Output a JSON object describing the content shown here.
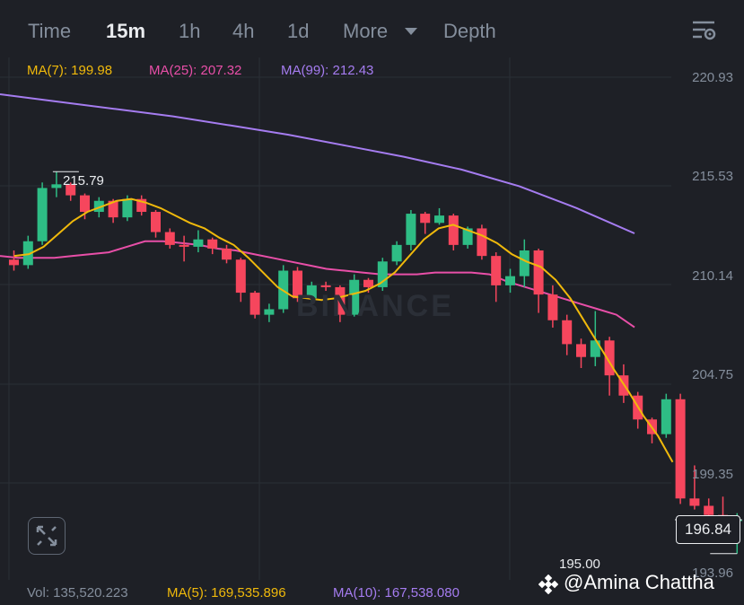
{
  "tabs": [
    "Time",
    "15m",
    "1h",
    "4h",
    "1d",
    "More",
    "Depth"
  ],
  "active_tab": "15m",
  "ma_legend": [
    {
      "label": "MA(7): 199.98",
      "color": "#f0b90b"
    },
    {
      "label": "MA(25): 207.32",
      "color": "#e84fa8"
    },
    {
      "label": "MA(99): 212.43",
      "color": "#a57cf0"
    }
  ],
  "y_ticks": [
    "220.93",
    "215.53",
    "210.14",
    "204.75",
    "199.35",
    "193.96"
  ],
  "high_label": "215.79",
  "low_label": "195.00",
  "current_price": "196.84",
  "watermark_text": "BINANCE",
  "credit": "@Amina Chattha",
  "volume_legend": [
    {
      "label": "Vol: 135,520.223",
      "color": "#848e9c"
    },
    {
      "label": "MA(5): 169,535.896",
      "color": "#f0b90b"
    },
    {
      "label": "MA(10): 167,538.080",
      "color": "#a57cf0"
    }
  ],
  "colors": {
    "up": "#2ebd85",
    "down": "#f6465d",
    "grid": "#2b2f36",
    "bg": "#1e2026"
  },
  "chart_data": {
    "type": "candlestick",
    "y_range": [
      193.96,
      220.93
    ],
    "candles": [
      [
        211.0,
        211.5,
        210.4,
        210.7
      ],
      [
        210.7,
        212.3,
        210.5,
        212.0
      ],
      [
        212.0,
        215.2,
        211.8,
        214.9
      ],
      [
        214.9,
        215.79,
        214.4,
        215.1
      ],
      [
        215.1,
        215.2,
        214.2,
        214.5
      ],
      [
        214.5,
        214.6,
        213.2,
        213.6
      ],
      [
        213.6,
        214.4,
        213.3,
        214.2
      ],
      [
        214.2,
        214.3,
        213.0,
        213.3
      ],
      [
        213.3,
        214.5,
        213.1,
        214.3
      ],
      [
        214.3,
        214.5,
        213.4,
        213.6
      ],
      [
        213.6,
        213.7,
        212.2,
        212.5
      ],
      [
        212.5,
        212.7,
        211.6,
        211.8
      ],
      [
        211.8,
        212.3,
        210.9,
        211.7
      ],
      [
        211.7,
        212.6,
        211.4,
        212.1
      ],
      [
        212.1,
        212.2,
        211.3,
        211.6
      ],
      [
        211.6,
        211.8,
        210.8,
        211.0
      ],
      [
        211.0,
        211.1,
        208.7,
        209.2
      ],
      [
        209.2,
        209.3,
        207.8,
        208.0
      ],
      [
        208.0,
        208.6,
        207.6,
        208.3
      ],
      [
        208.3,
        210.7,
        208.1,
        210.4
      ],
      [
        210.4,
        210.6,
        208.7,
        208.9
      ],
      [
        208.9,
        209.8,
        208.6,
        209.6
      ],
      [
        209.6,
        209.8,
        209.3,
        209.5
      ],
      [
        209.5,
        209.6,
        207.6,
        208.0
      ],
      [
        208.0,
        210.2,
        207.9,
        209.9
      ],
      [
        209.9,
        210.0,
        209.2,
        209.5
      ],
      [
        209.5,
        211.1,
        209.3,
        210.9
      ],
      [
        210.9,
        212.0,
        210.7,
        211.8
      ],
      [
        211.8,
        213.7,
        211.5,
        213.5
      ],
      [
        213.5,
        213.6,
        212.4,
        213.0
      ],
      [
        213.0,
        213.8,
        212.9,
        213.4
      ],
      [
        213.4,
        213.5,
        211.5,
        211.8
      ],
      [
        211.8,
        212.8,
        211.6,
        212.7
      ],
      [
        212.7,
        212.9,
        211.0,
        211.2
      ],
      [
        211.2,
        211.4,
        208.7,
        209.6
      ],
      [
        209.6,
        210.5,
        209.2,
        210.1
      ],
      [
        210.1,
        212.1,
        209.5,
        211.5
      ],
      [
        211.5,
        211.6,
        208.1,
        209.1
      ],
      [
        209.1,
        209.6,
        207.3,
        207.7
      ],
      [
        207.7,
        208.0,
        205.8,
        206.4
      ],
      [
        206.4,
        206.7,
        205.1,
        205.7
      ],
      [
        205.7,
        208.2,
        205.2,
        206.6
      ],
      [
        206.6,
        206.8,
        203.6,
        204.7
      ],
      [
        204.7,
        205.3,
        203.2,
        203.6
      ],
      [
        203.6,
        203.8,
        201.8,
        202.3
      ],
      [
        202.3,
        202.4,
        201.0,
        201.5
      ],
      [
        201.5,
        203.7,
        201.3,
        203.4
      ],
      [
        203.4,
        203.7,
        197.7,
        198.0
      ],
      [
        198.0,
        199.8,
        197.4,
        197.6
      ],
      [
        197.6,
        198.0,
        196.8,
        197.1
      ],
      [
        197.1,
        198.1,
        196.3,
        196.84
      ],
      [
        196.84,
        197.2,
        195.0,
        196.84
      ]
    ],
    "ma7": [
      211.2,
      211.3,
      211.7,
      212.4,
      213.1,
      213.6,
      213.9,
      214.2,
      214.3,
      214.1,
      213.8,
      213.4,
      213.0,
      212.7,
      212.2,
      211.8,
      211.1,
      210.3,
      209.5,
      209.0,
      208.9,
      208.8,
      208.9,
      209.1,
      209.3,
      209.7,
      210.3,
      211.2,
      212.1,
      212.7,
      212.9,
      212.6,
      212.3,
      211.9,
      211.3,
      210.9,
      210.6,
      209.9,
      208.9,
      207.6,
      206.3,
      205.0,
      203.8,
      202.5,
      201.4,
      199.98
    ],
    "ma25": [
      211.2,
      211.1,
      211.1,
      211.1,
      211.2,
      211.3,
      211.4,
      211.7,
      212.0,
      212.0,
      211.9,
      211.8,
      211.6,
      211.5,
      211.3,
      211.1,
      210.9,
      210.7,
      210.5,
      210.4,
      210.3,
      210.2,
      210.2,
      210.2,
      210.3,
      210.3,
      210.3,
      210.2,
      209.8,
      209.5,
      209.2,
      208.9,
      208.6,
      208.3,
      208.0,
      207.32
    ],
    "ma99": [
      220.0,
      219.6,
      219.2,
      218.8,
      218.3,
      217.8,
      217.2,
      216.6,
      215.9,
      215.0,
      213.8,
      212.43
    ],
    "y_ticks": [
      220.93,
      215.53,
      210.14,
      204.75,
      199.35,
      193.96
    ],
    "high": 215.79,
    "low": 195.0,
    "last": 196.84
  }
}
